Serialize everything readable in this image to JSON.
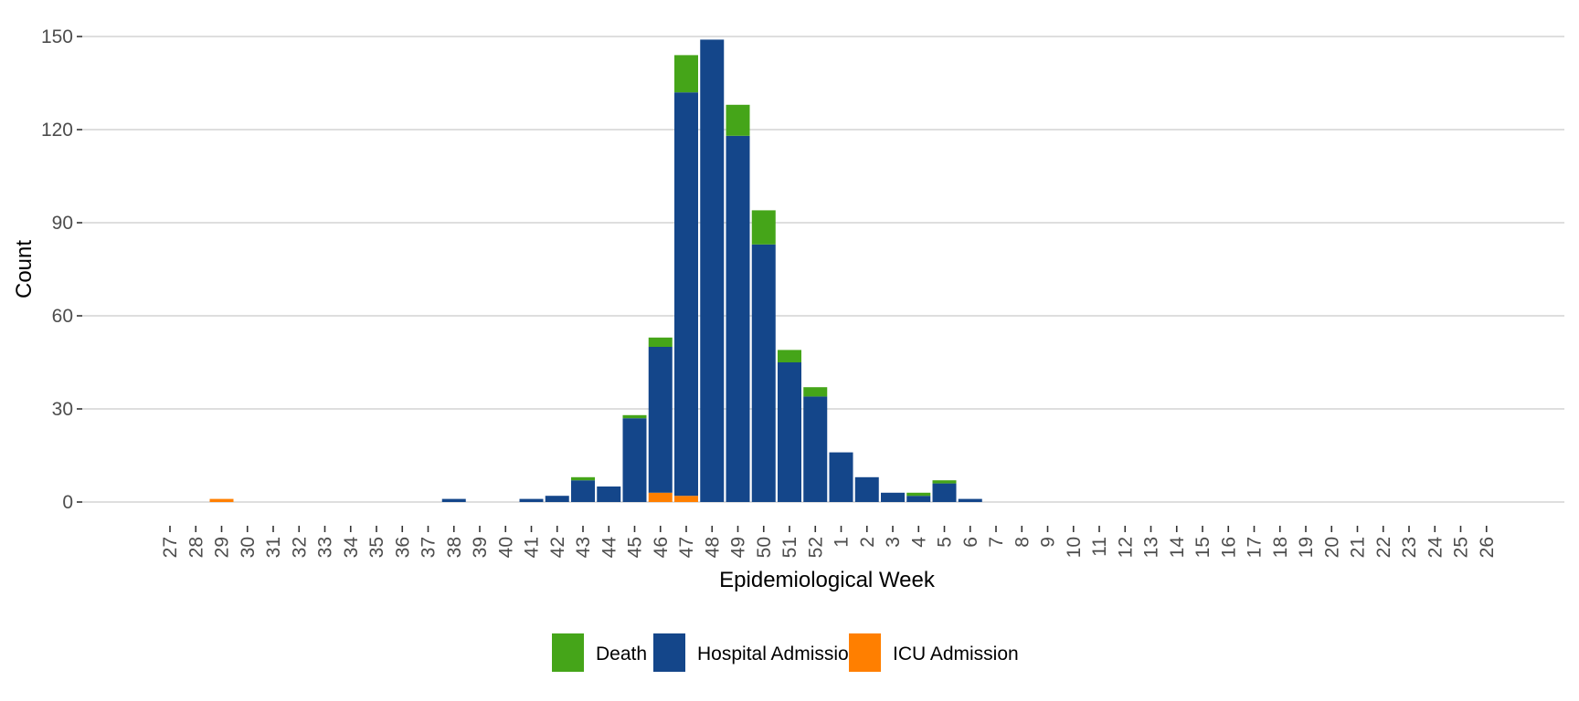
{
  "chart_data": {
    "type": "bar",
    "stacked": true,
    "title": "",
    "xlabel": "Epidemiological Week",
    "ylabel": "Count",
    "ylim": [
      0,
      150
    ],
    "yticks": [
      0,
      30,
      60,
      90,
      120,
      150
    ],
    "grid": "horizontal",
    "legend_position": "bottom",
    "categories": [
      "27",
      "28",
      "29",
      "30",
      "31",
      "32",
      "33",
      "34",
      "35",
      "36",
      "37",
      "38",
      "39",
      "40",
      "41",
      "42",
      "43",
      "44",
      "45",
      "46",
      "47",
      "48",
      "49",
      "50",
      "51",
      "52",
      "1",
      "2",
      "3",
      "4",
      "5",
      "6",
      "7",
      "8",
      "9",
      "10",
      "11",
      "12",
      "13",
      "14",
      "15",
      "16",
      "17",
      "18",
      "19",
      "20",
      "21",
      "22",
      "23",
      "24",
      "25",
      "26"
    ],
    "series": [
      {
        "name": "ICU Admission",
        "color": "#ff7f00",
        "values": [
          0,
          0,
          1,
          0,
          0,
          0,
          0,
          0,
          0,
          0,
          0,
          0,
          0,
          0,
          0,
          0,
          0,
          0,
          0,
          3,
          2,
          0,
          0,
          0,
          0,
          0,
          0,
          0,
          0,
          0,
          0,
          0,
          0,
          0,
          0,
          0,
          0,
          0,
          0,
          0,
          0,
          0,
          0,
          0,
          0,
          0,
          0,
          0,
          0,
          0,
          0,
          0
        ]
      },
      {
        "name": "Hospital Admission",
        "color": "#14468a",
        "values": [
          0,
          0,
          0,
          0,
          0,
          0,
          0,
          0,
          0,
          0,
          0,
          1,
          0,
          0,
          1,
          2,
          7,
          5,
          27,
          47,
          130,
          149,
          118,
          83,
          45,
          34,
          16,
          8,
          3,
          2,
          6,
          1,
          0,
          0,
          0,
          0,
          0,
          0,
          0,
          0,
          0,
          0,
          0,
          0,
          0,
          0,
          0,
          0,
          0,
          0,
          0,
          0
        ]
      },
      {
        "name": "Death",
        "color": "#45a519",
        "values": [
          0,
          0,
          0,
          0,
          0,
          0,
          0,
          0,
          0,
          0,
          0,
          0,
          0,
          0,
          0,
          0,
          1,
          0,
          1,
          3,
          12,
          0,
          10,
          11,
          4,
          3,
          0,
          0,
          0,
          1,
          1,
          0,
          0,
          0,
          0,
          0,
          0,
          0,
          0,
          0,
          0,
          0,
          0,
          0,
          0,
          0,
          0,
          0,
          0,
          0,
          0,
          0
        ]
      }
    ],
    "legend": [
      {
        "name": "Death",
        "color": "#45a519"
      },
      {
        "name": "Hospital Admission",
        "color": "#14468a"
      },
      {
        "name": "ICU Admission",
        "color": "#ff7f00"
      }
    ]
  }
}
